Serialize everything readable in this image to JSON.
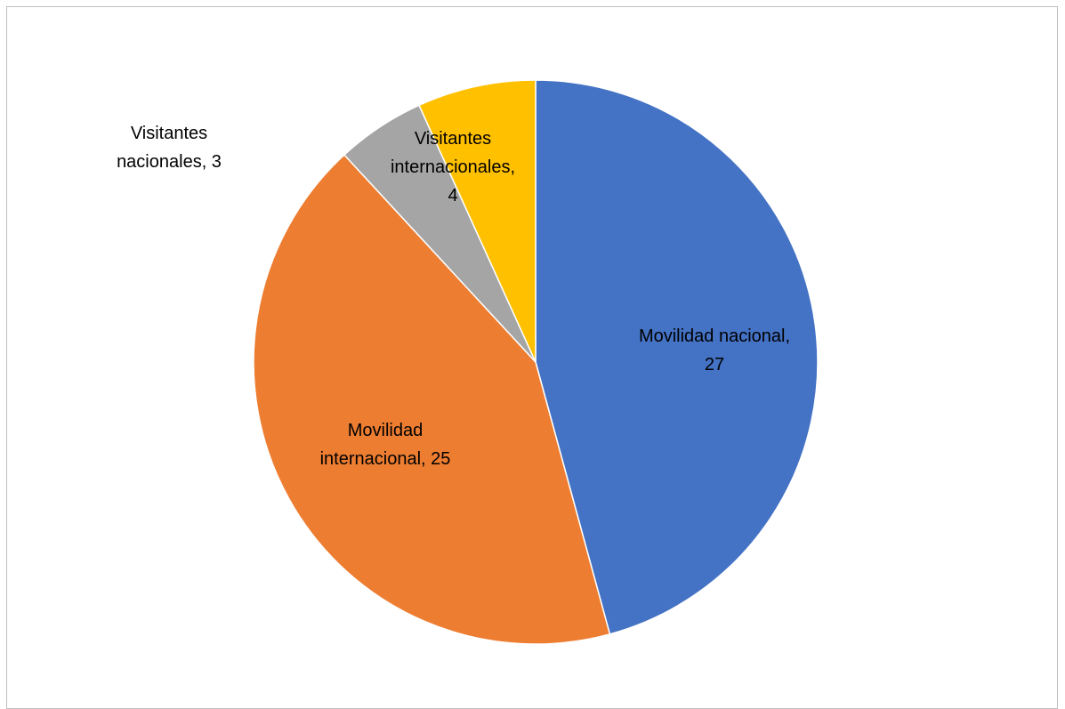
{
  "chart_data": {
    "type": "pie",
    "title": "",
    "slices": [
      {
        "label": "Movilidad nacional",
        "value": 27,
        "color": "#4472C4",
        "label_lines": [
          "Movilidad nacional,",
          "27"
        ]
      },
      {
        "label": "Movilidad internacional",
        "value": 25,
        "color": "#ED7D31",
        "label_lines": [
          "Movilidad",
          "internacional, 25"
        ]
      },
      {
        "label": "Visitantes nacionales",
        "value": 3,
        "color": "#A5A5A5",
        "label_lines": [
          "Visitantes",
          "nacionales, 3"
        ]
      },
      {
        "label": "Visitantes internacionales",
        "value": 4,
        "color": "#FFC000",
        "label_lines": [
          "Visitantes",
          "internacionales,",
          "4"
        ]
      }
    ],
    "start_angle": "12 o'clock",
    "direction": "clockwise",
    "legend": "none"
  }
}
